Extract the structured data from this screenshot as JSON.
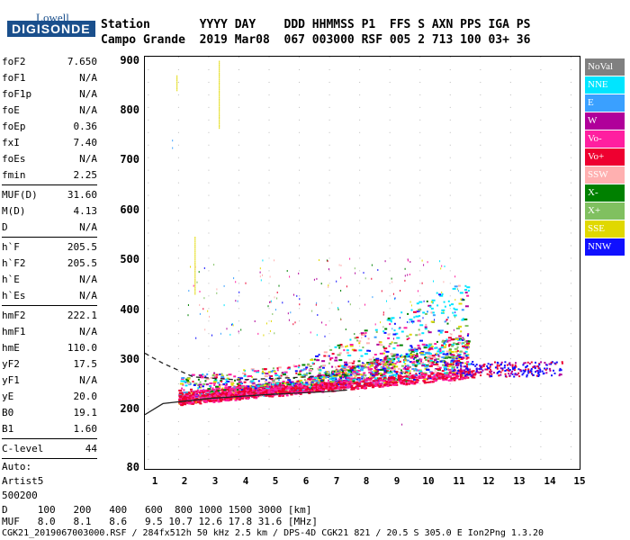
{
  "logo": {
    "top": "Lowell",
    "bottom": "DIGISONDE"
  },
  "header": {
    "row1": "Station       YYYY DAY    DDD HHMMSS P1  FFS S AXN PPS IGA PS",
    "row2": "Campo Grande  2019 Mar08  067 003000 RSF 005 2 713 100 03+ 36"
  },
  "params": {
    "group1": [
      {
        "label": "foF2",
        "value": "7.650"
      },
      {
        "label": "foF1",
        "value": "N/A"
      },
      {
        "label": "foF1p",
        "value": "N/A"
      },
      {
        "label": "foE",
        "value": "N/A"
      },
      {
        "label": "foEp",
        "value": "0.36"
      },
      {
        "label": "fxI",
        "value": "7.40"
      },
      {
        "label": "foEs",
        "value": "N/A"
      },
      {
        "label": "fmin",
        "value": "2.25"
      }
    ],
    "group2": [
      {
        "label": "MUF(D)",
        "value": "31.60"
      },
      {
        "label": "M(D)",
        "value": "4.13"
      },
      {
        "label": "D",
        "value": "N/A"
      }
    ],
    "group3": [
      {
        "label": "h`F",
        "value": "205.5"
      },
      {
        "label": "h`F2",
        "value": "205.5"
      },
      {
        "label": "h`E",
        "value": "N/A"
      },
      {
        "label": "h`Es",
        "value": "N/A"
      }
    ],
    "group4": [
      {
        "label": "hmF2",
        "value": "222.1"
      },
      {
        "label": "hmF1",
        "value": "N/A"
      },
      {
        "label": "hmE",
        "value": "110.0"
      },
      {
        "label": "yF2",
        "value": "17.5"
      },
      {
        "label": "yF1",
        "value": "N/A"
      },
      {
        "label": "yE",
        "value": "20.0"
      },
      {
        "label": "B0",
        "value": "19.1"
      },
      {
        "label": "B1",
        "value": "1.60"
      }
    ],
    "group5": [
      {
        "label": "C-level",
        "value": "44"
      }
    ],
    "auto": [
      "Auto:",
      "Artist5",
      "500200"
    ]
  },
  "legend": [
    {
      "label": "NoVal",
      "color": "#808080"
    },
    {
      "label": "NNE",
      "color": "#00e5ff"
    },
    {
      "label": "E",
      "color": "#3aa0ff"
    },
    {
      "label": "W",
      "color": "#b0009a"
    },
    {
      "label": "Vo-",
      "color": "#ff1fa0"
    },
    {
      "label": "Vo+",
      "color": "#ee0030"
    },
    {
      "label": "SSW",
      "color": "#ffb0b0"
    },
    {
      "label": "X-",
      "color": "#008000"
    },
    {
      "label": "X+",
      "color": "#80c060"
    },
    {
      "label": "SSE",
      "color": "#e0d800"
    },
    {
      "label": "NNW",
      "color": "#1010ff"
    }
  ],
  "chart_data": {
    "type": "scatter",
    "xlim": [
      0.9,
      15.3
    ],
    "ylim": [
      80,
      900
    ],
    "x_ticks": [
      "1",
      "2",
      "3",
      "4",
      "5",
      "6",
      "7",
      "8",
      "9",
      "10",
      "11",
      "12",
      "13",
      "14",
      "15"
    ],
    "y_ticks": [
      "900",
      "800",
      "700",
      "600",
      "500",
      "400",
      "300",
      "200",
      "80"
    ],
    "profile_curve": [
      [
        1.5,
        210
      ],
      [
        3,
        220
      ],
      [
        5,
        228
      ],
      [
        7,
        234
      ],
      [
        7.6,
        237
      ]
    ],
    "profile_dashed": [
      [
        1.5,
        290
      ],
      [
        2.5,
        263
      ],
      [
        4,
        257
      ],
      [
        6,
        262
      ],
      [
        7.6,
        268
      ]
    ]
  },
  "footer": {
    "d_row": "D     100   200   400   600  800 1000 1500 3000 [km]",
    "muf_row": "MUF   8.0   8.1   8.6   9.5 10.7 12.6 17.8 31.6 [MHz]",
    "status": "CGK21_2019067003000.RSF / 284fx512h 50 kHz 2.5 km / DPS-4D CGK21 821 / 20.5 S 305.0 E Ion2Png 1.3.20"
  }
}
